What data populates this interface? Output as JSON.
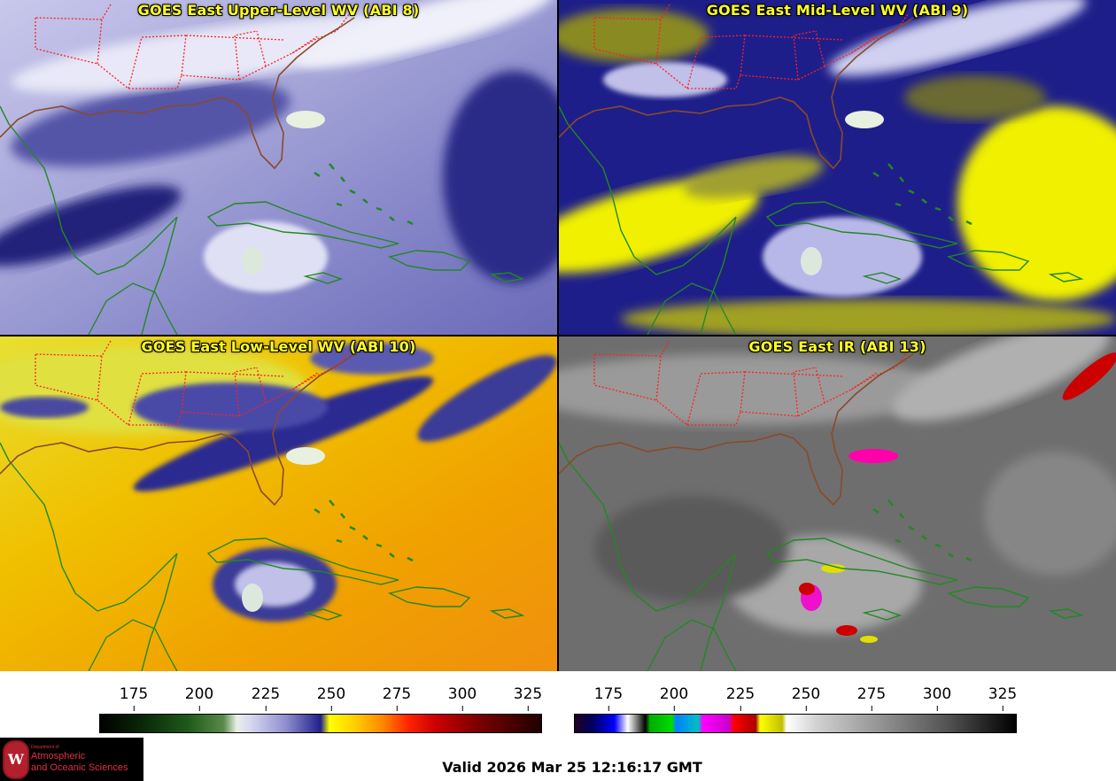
{
  "panels": [
    {
      "title": "GOES East Upper-Level WV (ABI 8)"
    },
    {
      "title": "GOES East Mid-Level WV (ABI 9)"
    },
    {
      "title": "GOES East Low-Level WV (ABI 10)"
    },
    {
      "title": "GOES East IR (ABI 13)"
    }
  ],
  "colorbars": {
    "wv_ticks": [
      "175",
      "200",
      "225",
      "250",
      "275",
      "300",
      "325"
    ],
    "ir_ticks": [
      "175",
      "200",
      "225",
      "250",
      "275",
      "300",
      "325"
    ],
    "range": [
      162,
      330
    ]
  },
  "logo": {
    "seal_letter": "W",
    "department": "Department of",
    "line1": "Atmospheric",
    "line2": "and Oceanic Sciences"
  },
  "valid_text": "Valid 2026 Mar 25 12:16:17 GMT",
  "colors": {
    "title_text": "#ffff22",
    "state_borders": "#ff2020",
    "coastlines": "#228822",
    "coast_us": "#8a4a2a"
  }
}
